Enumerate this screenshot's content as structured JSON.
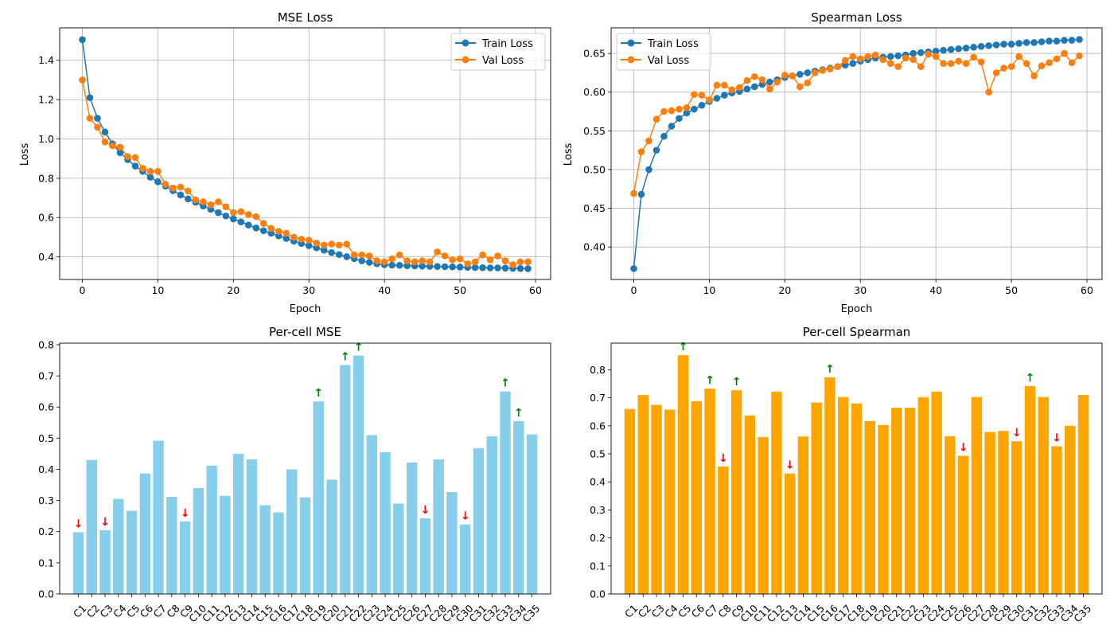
{
  "colors": {
    "train": "#1f77b4",
    "val": "#ff7f0e",
    "mse_bar": "#87ceeb",
    "spearman_bar": "#ffa500",
    "arrow_up": "#008000",
    "arrow_down": "#ff0000",
    "grid": "#b0b0b0"
  },
  "chart_data": [
    {
      "type": "line",
      "title": "MSE Loss",
      "xlabel": "Epoch",
      "ylabel": "Loss",
      "xlim": [
        -3,
        62
      ],
      "ylim": [
        0.285,
        1.565
      ],
      "xticks": [
        "0",
        "10",
        "20",
        "30",
        "40",
        "50",
        "60"
      ],
      "yticks": [
        "0.4",
        "0.6",
        "0.8",
        "1.0",
        "1.2",
        "1.4"
      ],
      "grid": true,
      "legend": "top-right",
      "series": [
        {
          "name": "Train Loss",
          "color_key": "train",
          "values": [
            1.505,
            1.21,
            1.105,
            1.035,
            0.975,
            0.93,
            0.895,
            0.862,
            0.835,
            0.805,
            0.782,
            0.76,
            0.737,
            0.715,
            0.695,
            0.678,
            0.659,
            0.642,
            0.625,
            0.608,
            0.593,
            0.578,
            0.562,
            0.547,
            0.533,
            0.52,
            0.507,
            0.494,
            0.48,
            0.468,
            0.457,
            0.446,
            0.434,
            0.422,
            0.412,
            0.401,
            0.391,
            0.38,
            0.372,
            0.365,
            0.36,
            0.358,
            0.357,
            0.355,
            0.354,
            0.353,
            0.352,
            0.351,
            0.35,
            0.349,
            0.348,
            0.347,
            0.346,
            0.345,
            0.344,
            0.344,
            0.343,
            0.342,
            0.341,
            0.34
          ]
        },
        {
          "name": "Val Loss",
          "color_key": "val",
          "values": [
            1.3,
            1.105,
            1.06,
            0.985,
            0.965,
            0.958,
            0.91,
            0.905,
            0.85,
            0.835,
            0.835,
            0.77,
            0.75,
            0.755,
            0.735,
            0.69,
            0.68,
            0.665,
            0.68,
            0.655,
            0.625,
            0.63,
            0.615,
            0.605,
            0.57,
            0.545,
            0.53,
            0.52,
            0.5,
            0.49,
            0.485,
            0.47,
            0.46,
            0.465,
            0.46,
            0.465,
            0.41,
            0.41,
            0.405,
            0.38,
            0.375,
            0.39,
            0.41,
            0.38,
            0.375,
            0.38,
            0.375,
            0.425,
            0.405,
            0.385,
            0.39,
            0.365,
            0.375,
            0.41,
            0.385,
            0.405,
            0.38,
            0.36,
            0.375,
            0.375
          ]
        }
      ]
    },
    {
      "type": "line",
      "title": "Spearman Loss",
      "xlabel": "Epoch",
      "ylabel": "Loss",
      "xlim": [
        -3,
        62
      ],
      "ylim": [
        0.358,
        0.683
      ],
      "xticks": [
        "0",
        "10",
        "20",
        "30",
        "40",
        "50",
        "60"
      ],
      "yticks": [
        "0.40",
        "0.45",
        "0.50",
        "0.55",
        "0.60",
        "0.65"
      ],
      "grid": true,
      "legend": "top-left",
      "series": [
        {
          "name": "Train Loss",
          "color_key": "train",
          "values": [
            0.372,
            0.468,
            0.5,
            0.525,
            0.543,
            0.556,
            0.566,
            0.573,
            0.578,
            0.583,
            0.588,
            0.592,
            0.596,
            0.599,
            0.601,
            0.604,
            0.607,
            0.61,
            0.613,
            0.616,
            0.619,
            0.621,
            0.623,
            0.625,
            0.627,
            0.629,
            0.631,
            0.633,
            0.635,
            0.637,
            0.64,
            0.642,
            0.644,
            0.645,
            0.646,
            0.647,
            0.648,
            0.65,
            0.651,
            0.652,
            0.653,
            0.654,
            0.655,
            0.656,
            0.657,
            0.658,
            0.659,
            0.66,
            0.661,
            0.662,
            0.662,
            0.663,
            0.664,
            0.664,
            0.665,
            0.666,
            0.666,
            0.667,
            0.667,
            0.668
          ]
        },
        {
          "name": "Val Loss",
          "color_key": "val",
          "values": [
            0.469,
            0.523,
            0.537,
            0.565,
            0.575,
            0.576,
            0.578,
            0.58,
            0.597,
            0.596,
            0.59,
            0.609,
            0.609,
            0.603,
            0.606,
            0.615,
            0.62,
            0.616,
            0.604,
            0.613,
            0.622,
            0.621,
            0.607,
            0.612,
            0.625,
            0.628,
            0.63,
            0.633,
            0.641,
            0.646,
            0.643,
            0.646,
            0.648,
            0.642,
            0.637,
            0.633,
            0.644,
            0.642,
            0.633,
            0.649,
            0.646,
            0.637,
            0.637,
            0.64,
            0.637,
            0.645,
            0.639,
            0.6,
            0.625,
            0.631,
            0.633,
            0.646,
            0.637,
            0.621,
            0.634,
            0.638,
            0.643,
            0.65,
            0.638,
            0.647
          ]
        }
      ]
    },
    {
      "type": "bar",
      "title": "Per-cell MSE",
      "ylim": [
        0,
        0.805
      ],
      "yticks": [
        "0.0",
        "0.1",
        "0.2",
        "0.3",
        "0.4",
        "0.5",
        "0.6",
        "0.7",
        "0.8"
      ],
      "grid": false,
      "color_key": "mse_bar",
      "categories": [
        "C1",
        "C2",
        "C3",
        "C4",
        "C5",
        "C6",
        "C7",
        "C8",
        "C9",
        "C10",
        "C11",
        "C12",
        "C13",
        "C14",
        "C15",
        "C16",
        "C17",
        "C18",
        "C19",
        "C20",
        "C21",
        "C22",
        "C23",
        "C24",
        "C25",
        "C26",
        "C27",
        "C28",
        "C29",
        "C30",
        "C31",
        "C32",
        "C33",
        "C34",
        "C35"
      ],
      "values": [
        0.198,
        0.43,
        0.205,
        0.305,
        0.267,
        0.387,
        0.492,
        0.312,
        0.233,
        0.34,
        0.412,
        0.315,
        0.45,
        0.432,
        0.285,
        0.262,
        0.4,
        0.31,
        0.618,
        0.367,
        0.735,
        0.765,
        0.51,
        0.455,
        0.29,
        0.422,
        0.243,
        0.432,
        0.327,
        0.223,
        0.468,
        0.506,
        0.65,
        0.555,
        0.512
      ],
      "annotations": [
        {
          "category": "C1",
          "text": "↓",
          "dir": "down"
        },
        {
          "category": "C3",
          "text": "↓",
          "dir": "down"
        },
        {
          "category": "C9",
          "text": "↓",
          "dir": "down"
        },
        {
          "category": "C19",
          "text": "↑",
          "dir": "up"
        },
        {
          "category": "C21",
          "text": "↑",
          "dir": "up"
        },
        {
          "category": "C22",
          "text": "↑",
          "dir": "up"
        },
        {
          "category": "C27",
          "text": "↓",
          "dir": "down"
        },
        {
          "category": "C30",
          "text": "↓",
          "dir": "down"
        },
        {
          "category": "C33",
          "text": "↑",
          "dir": "up"
        },
        {
          "category": "C34",
          "text": "↑",
          "dir": "up"
        }
      ]
    },
    {
      "type": "bar",
      "title": "Per-cell Spearman",
      "ylim": [
        0,
        0.895
      ],
      "yticks": [
        "0.0",
        "0.1",
        "0.2",
        "0.3",
        "0.4",
        "0.5",
        "0.6",
        "0.7",
        "0.8"
      ],
      "grid": false,
      "color_key": "spearman_bar",
      "categories": [
        "C1",
        "C2",
        "C3",
        "C4",
        "C5",
        "C6",
        "C7",
        "C8",
        "C9",
        "C10",
        "C11",
        "C12",
        "C13",
        "C14",
        "C15",
        "C16",
        "C17",
        "C18",
        "C19",
        "C20",
        "C21",
        "C22",
        "C23",
        "C24",
        "C25",
        "C26",
        "C27",
        "C28",
        "C29",
        "C30",
        "C31",
        "C32",
        "C33",
        "C34",
        "C35"
      ],
      "values": [
        0.66,
        0.71,
        0.675,
        0.658,
        0.852,
        0.688,
        0.733,
        0.455,
        0.727,
        0.637,
        0.56,
        0.722,
        0.43,
        0.562,
        0.683,
        0.773,
        0.703,
        0.68,
        0.617,
        0.603,
        0.665,
        0.665,
        0.702,
        0.722,
        0.563,
        0.493,
        0.703,
        0.578,
        0.582,
        0.545,
        0.742,
        0.703,
        0.527,
        0.6,
        0.71
      ],
      "annotations": [
        {
          "category": "C5",
          "text": "↑",
          "dir": "up"
        },
        {
          "category": "C7",
          "text": "↑",
          "dir": "up"
        },
        {
          "category": "C8",
          "text": "↓",
          "dir": "down"
        },
        {
          "category": "C9",
          "text": "↑",
          "dir": "up"
        },
        {
          "category": "C13",
          "text": "↓",
          "dir": "down"
        },
        {
          "category": "C16",
          "text": "↑",
          "dir": "up"
        },
        {
          "category": "C26",
          "text": "↓",
          "dir": "down"
        },
        {
          "category": "C30",
          "text": "↓",
          "dir": "down"
        },
        {
          "category": "C31",
          "text": "↑",
          "dir": "up"
        },
        {
          "category": "C33",
          "text": "↓",
          "dir": "down"
        }
      ]
    }
  ]
}
